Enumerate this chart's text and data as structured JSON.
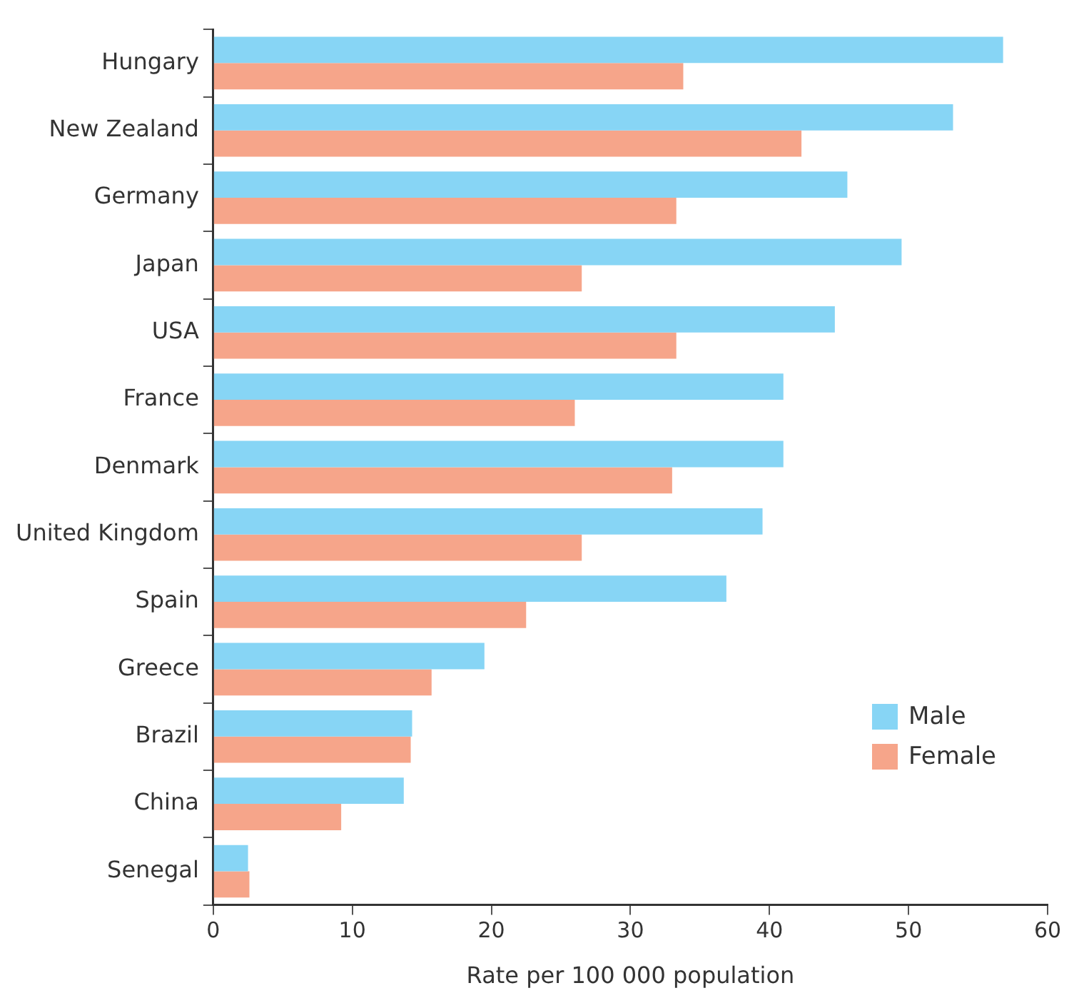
{
  "chart_data": {
    "type": "bar",
    "orientation": "horizontal",
    "xlabel": "Rate per 100 000 population",
    "categories": [
      "Hungary",
      "New Zealand",
      "Germany",
      "Japan",
      "USA",
      "France",
      "Denmark",
      "United Kingdom",
      "Spain",
      "Greece",
      "Brazil",
      "China",
      "Senegal"
    ],
    "series": [
      {
        "name": "Male",
        "color": "#87d5f5",
        "values": [
          56.8,
          53.2,
          45.6,
          49.5,
          44.7,
          41.0,
          41.0,
          39.5,
          36.9,
          19.5,
          14.3,
          13.7,
          2.5
        ]
      },
      {
        "name": "Female",
        "color": "#f6a58a",
        "values": [
          33.8,
          42.3,
          33.3,
          26.5,
          33.3,
          26.0,
          33.0,
          26.5,
          22.5,
          15.7,
          14.2,
          9.2,
          2.6
        ]
      }
    ],
    "xlim": [
      0,
      60
    ],
    "xticks": [
      0,
      10,
      20,
      30,
      40,
      50,
      60
    ],
    "grid": false,
    "legend": "bottom right"
  }
}
